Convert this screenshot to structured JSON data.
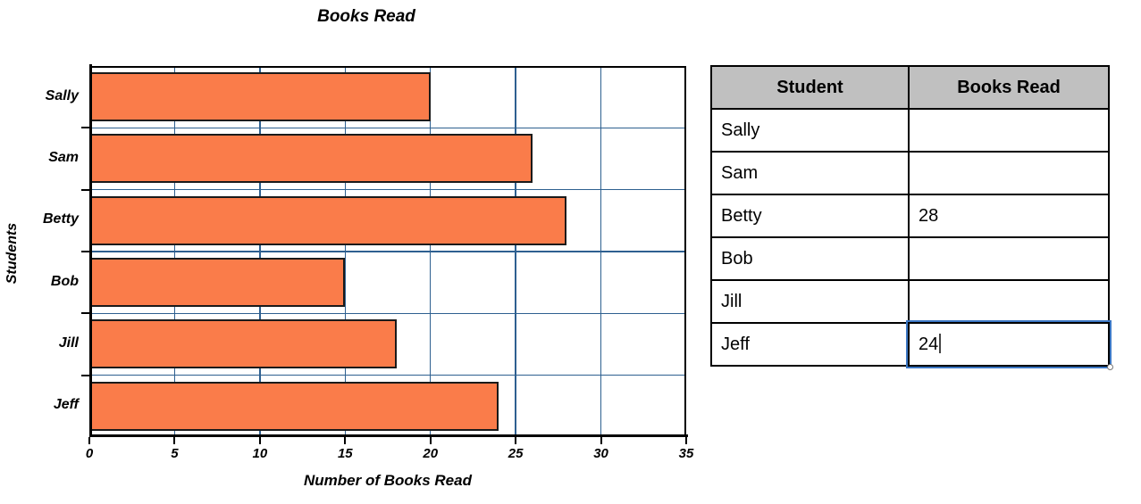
{
  "chart_data": {
    "type": "bar",
    "orientation": "horizontal",
    "title": "Books Read",
    "categories": [
      "Sally",
      "Sam",
      "Betty",
      "Bob",
      "Jill",
      "Jeff"
    ],
    "values": [
      20,
      26,
      28,
      15,
      18,
      24
    ],
    "xlabel": "Number of Books Read",
    "ylabel": "Students",
    "xlim": [
      0,
      35
    ],
    "xticks": [
      0,
      5,
      10,
      15,
      20,
      25,
      30,
      35
    ],
    "grid": true,
    "legend": false,
    "bar_color": "#FA7C4A",
    "bar_border_color": "#1a1a1a",
    "grid_color": "#2E6090"
  },
  "table": {
    "headers": [
      "Student",
      "Books Read"
    ],
    "header_bg": "#C0C0C0",
    "rows": [
      {
        "student": "Sally",
        "books": ""
      },
      {
        "student": "Sam",
        "books": ""
      },
      {
        "student": "Betty",
        "books": "28"
      },
      {
        "student": "Bob",
        "books": ""
      },
      {
        "student": "Jill",
        "books": ""
      },
      {
        "student": "Jeff",
        "books": "24"
      }
    ],
    "focused_cell": {
      "row": "Jeff",
      "column": "Books Read",
      "value": "24"
    },
    "focus_color": "#3B77C4"
  }
}
